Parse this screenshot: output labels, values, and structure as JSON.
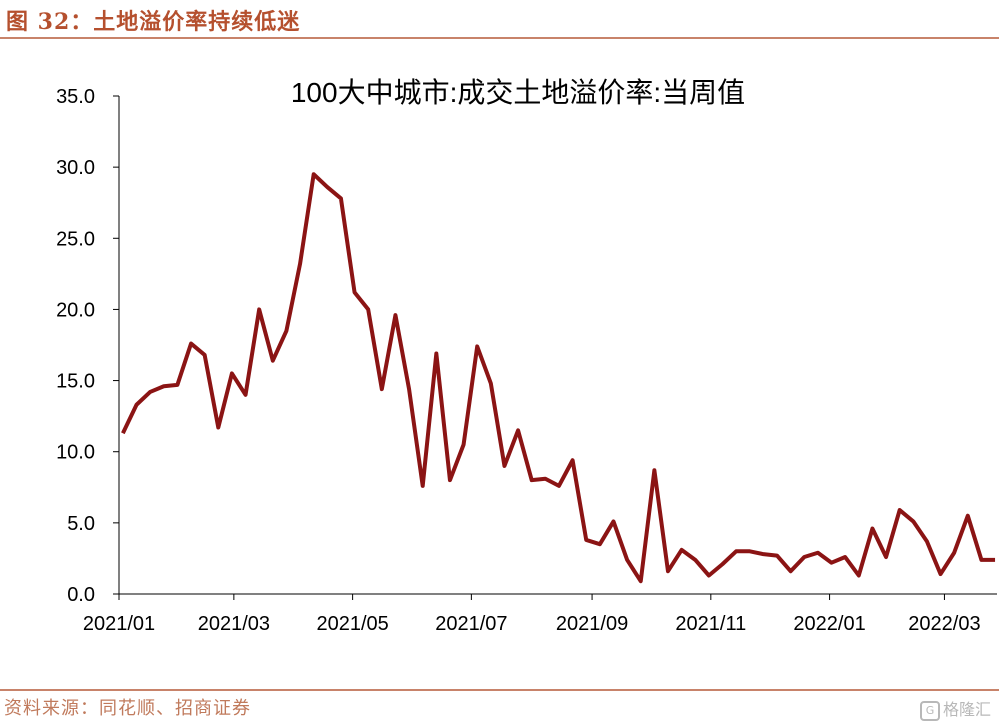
{
  "figure": {
    "title": "图 32：土地溢价率持续低迷",
    "source": "资料来源：同花顺、招商证券",
    "watermark": "格隆汇",
    "watermark_icon": "G"
  },
  "colors": {
    "line": "#8b1414",
    "title": "#b5502e",
    "rule": "#c8836a",
    "source": "#c07a5c",
    "axis": "#000000"
  },
  "chart_data": {
    "type": "line",
    "title": "100大中城市:成交土地溢价率:当周值",
    "xlabel": "",
    "ylabel": "",
    "x_start": "2021-01-03",
    "x_step_days": 7,
    "x_tick_labels": [
      "2021/01",
      "2021/03",
      "2021/05",
      "2021/07",
      "2021/09",
      "2021/11",
      "2022/01",
      "2022/03"
    ],
    "x_tick_dates": [
      "2021-01-01",
      "2021-03-01",
      "2021-05-01",
      "2021-07-01",
      "2021-09-01",
      "2021-11-01",
      "2022-01-01",
      "2022-03-01"
    ],
    "x_range": [
      "2021-01-01",
      "2022-03-28"
    ],
    "y_tick_labels": [
      "0.0",
      "5.0",
      "10.0",
      "15.0",
      "20.0",
      "25.0",
      "30.0",
      "35.0"
    ],
    "ylim": [
      0,
      35
    ],
    "grid": false,
    "legend": "none",
    "series": [
      {
        "values": [
          11.3,
          13.3,
          14.2,
          14.6,
          14.7,
          17.6,
          16.8,
          11.7,
          15.5,
          14.0,
          20.0,
          16.4,
          18.5,
          23.2,
          29.5,
          28.6,
          27.8,
          21.2,
          20.0,
          14.4,
          19.6,
          14.4,
          7.6,
          16.9,
          8.0,
          10.5,
          17.4,
          14.8,
          9.0,
          11.5,
          8.0,
          8.1,
          7.6,
          9.4,
          3.8,
          3.5,
          5.1,
          2.4,
          0.9,
          8.7,
          1.6,
          3.1,
          2.4,
          1.3,
          2.1,
          3.0,
          3.0,
          2.8,
          2.7,
          1.6,
          2.6,
          2.9,
          2.2,
          2.6,
          1.3,
          4.6,
          2.6,
          5.9,
          5.1,
          3.7,
          1.4,
          2.9,
          5.5,
          2.4,
          2.4
        ]
      }
    ]
  }
}
